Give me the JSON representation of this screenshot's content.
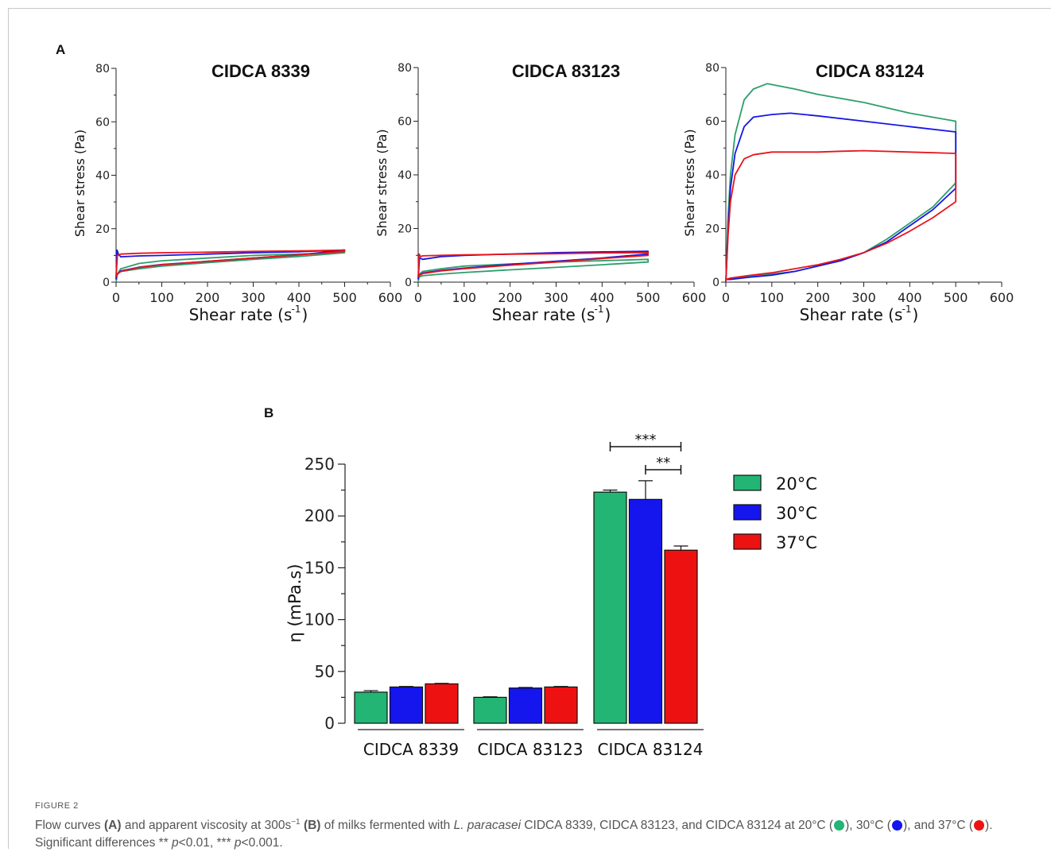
{
  "panel_labels": {
    "a": "A",
    "b": "B"
  },
  "chart_data": [
    {
      "type": "line",
      "title": "CIDCA 8339",
      "xlabel": "Shear rate (s",
      "xlabel_sup": "-1",
      "ylabel": "Shear stress (Pa)",
      "xlim": [
        0,
        600
      ],
      "ylim": [
        0,
        80
      ],
      "xticks": [
        "0",
        "100",
        "200",
        "300",
        "400",
        "500",
        "600"
      ],
      "yticks": [
        "0",
        "20",
        "40",
        "60",
        "80"
      ],
      "series": [
        {
          "color": "#2e9e6b",
          "up": [
            [
              0,
              0
            ],
            [
              3,
              3
            ],
            [
              10,
              5
            ],
            [
              50,
              7
            ],
            [
              100,
              8
            ],
            [
              200,
              9
            ],
            [
              300,
              10
            ],
            [
              400,
              10.5
            ],
            [
              500,
              11
            ]
          ],
          "down": [
            [
              500,
              11
            ],
            [
              400,
              9.6
            ],
            [
              300,
              8.5
            ],
            [
              200,
              7.3
            ],
            [
              100,
              6
            ],
            [
              50,
              5
            ],
            [
              10,
              4
            ],
            [
              3,
              3
            ],
            [
              0,
              2
            ]
          ]
        },
        {
          "color": "#1616e6",
          "up": [
            [
              0,
              1
            ],
            [
              2,
              12
            ],
            [
              5,
              10.5
            ],
            [
              10,
              9.5
            ],
            [
              50,
              9.8
            ],
            [
              100,
              10
            ],
            [
              200,
              10.5
            ],
            [
              300,
              11
            ],
            [
              400,
              11.4
            ],
            [
              500,
              12
            ]
          ],
          "down": [
            [
              500,
              12
            ],
            [
              400,
              10.2
            ],
            [
              300,
              9
            ],
            [
              200,
              7.8
            ],
            [
              100,
              6.6
            ],
            [
              50,
              5.6
            ],
            [
              10,
              4.2
            ],
            [
              3,
              3
            ],
            [
              0,
              2
            ]
          ]
        },
        {
          "color": "#e8151b",
          "up": [
            [
              0,
              2
            ],
            [
              3,
              10
            ],
            [
              10,
              10.5
            ],
            [
              50,
              10.8
            ],
            [
              100,
              11
            ],
            [
              200,
              11.2
            ],
            [
              300,
              11.5
            ],
            [
              400,
              11.7
            ],
            [
              500,
              12
            ]
          ],
          "down": [
            [
              500,
              11.5
            ],
            [
              400,
              10.2
            ],
            [
              300,
              9
            ],
            [
              200,
              7.8
            ],
            [
              100,
              6.5
            ],
            [
              50,
              5.5
            ],
            [
              10,
              4
            ],
            [
              3,
              3
            ],
            [
              0,
              2
            ]
          ]
        }
      ]
    },
    {
      "type": "line",
      "title": "CIDCA 83123",
      "xlabel": "Shear rate (s",
      "xlabel_sup": "-1",
      "ylabel": "Shear stress (Pa)",
      "xlim": [
        0,
        600
      ],
      "ylim": [
        0,
        80
      ],
      "xticks": [
        "0",
        "100",
        "200",
        "300",
        "400",
        "500",
        "600"
      ],
      "yticks": [
        "0",
        "20",
        "40",
        "60",
        "80"
      ],
      "series": [
        {
          "color": "#2e9e6b",
          "up": [
            [
              0,
              0
            ],
            [
              3,
              3
            ],
            [
              10,
              4
            ],
            [
              50,
              5
            ],
            [
              100,
              6
            ],
            [
              200,
              6.8
            ],
            [
              300,
              7.5
            ],
            [
              400,
              8
            ],
            [
              500,
              8.5
            ]
          ],
          "down": [
            [
              500,
              7.5
            ],
            [
              400,
              6.5
            ],
            [
              300,
              5.5
            ],
            [
              200,
              4.6
            ],
            [
              100,
              3.6
            ],
            [
              50,
              3
            ],
            [
              10,
              2.4
            ],
            [
              3,
              2
            ],
            [
              0,
              1
            ]
          ]
        },
        {
          "color": "#1616e6",
          "up": [
            [
              0,
              1
            ],
            [
              3,
              9
            ],
            [
              10,
              8.5
            ],
            [
              50,
              9.5
            ],
            [
              100,
              10
            ],
            [
              200,
              10.5
            ],
            [
              300,
              11
            ],
            [
              400,
              11.3
            ],
            [
              500,
              11.5
            ]
          ],
          "down": [
            [
              500,
              10.5
            ],
            [
              400,
              9
            ],
            [
              300,
              7.8
            ],
            [
              200,
              6.6
            ],
            [
              100,
              5.2
            ],
            [
              50,
              4.4
            ],
            [
              10,
              3.4
            ],
            [
              3,
              2.6
            ],
            [
              0,
              2
            ]
          ]
        },
        {
          "color": "#e8151b",
          "up": [
            [
              0,
              2
            ],
            [
              2,
              10.5
            ],
            [
              5,
              9.5
            ],
            [
              10,
              9.8
            ],
            [
              50,
              10
            ],
            [
              100,
              10.2
            ],
            [
              200,
              10.4
            ],
            [
              300,
              10.6
            ],
            [
              400,
              10.9
            ],
            [
              500,
              11
            ]
          ],
          "down": [
            [
              500,
              10
            ],
            [
              400,
              8.8
            ],
            [
              300,
              7.5
            ],
            [
              200,
              6.3
            ],
            [
              100,
              5
            ],
            [
              50,
              4.2
            ],
            [
              10,
              3.2
            ],
            [
              3,
              2.5
            ],
            [
              0,
              2
            ]
          ]
        }
      ]
    },
    {
      "type": "line",
      "title": "CIDCA 83124",
      "xlabel": "Shear rate (s",
      "xlabel_sup": "-1",
      "ylabel": "Shear stress (Pa)",
      "xlim": [
        0,
        600
      ],
      "ylim": [
        0,
        80
      ],
      "xticks": [
        "0",
        "100",
        "200",
        "300",
        "400",
        "500",
        "600"
      ],
      "yticks": [
        "0",
        "20",
        "40",
        "60",
        "80"
      ],
      "series": [
        {
          "color": "#2e9e6b",
          "up": [
            [
              0,
              0
            ],
            [
              5,
              25
            ],
            [
              10,
              40
            ],
            [
              20,
              55
            ],
            [
              40,
              68
            ],
            [
              60,
              72
            ],
            [
              90,
              74
            ],
            [
              150,
              72
            ],
            [
              200,
              70
            ],
            [
              300,
              67
            ],
            [
              400,
              63
            ],
            [
              500,
              60
            ]
          ],
          "down": [
            [
              500,
              60
            ],
            [
              500,
              37
            ],
            [
              450,
              28
            ],
            [
              400,
              22
            ],
            [
              350,
              16
            ],
            [
              300,
              11
            ],
            [
              250,
              8
            ],
            [
              200,
              6
            ],
            [
              150,
              4
            ],
            [
              100,
              3
            ],
            [
              50,
              2
            ],
            [
              10,
              1.2
            ],
            [
              0,
              1
            ]
          ]
        },
        {
          "color": "#1616e6",
          "up": [
            [
              0,
              0
            ],
            [
              5,
              20
            ],
            [
              10,
              35
            ],
            [
              20,
              48
            ],
            [
              40,
              58
            ],
            [
              60,
              61.5
            ],
            [
              100,
              62.5
            ],
            [
              140,
              63
            ],
            [
              200,
              62
            ],
            [
              300,
              60
            ],
            [
              400,
              58
            ],
            [
              500,
              56
            ]
          ],
          "down": [
            [
              500,
              56
            ],
            [
              500,
              35
            ],
            [
              450,
              27
            ],
            [
              400,
              21
            ],
            [
              350,
              15
            ],
            [
              300,
              11
            ],
            [
              250,
              8
            ],
            [
              200,
              6
            ],
            [
              150,
              4
            ],
            [
              100,
              2.6
            ],
            [
              50,
              1.8
            ],
            [
              10,
              1
            ],
            [
              0,
              1
            ]
          ]
        },
        {
          "color": "#e8151b",
          "up": [
            [
              0,
              0
            ],
            [
              5,
              18
            ],
            [
              10,
              30
            ],
            [
              20,
              40
            ],
            [
              40,
              46
            ],
            [
              60,
              47.5
            ],
            [
              100,
              48.5
            ],
            [
              200,
              48.5
            ],
            [
              250,
              48.8
            ],
            [
              300,
              49
            ],
            [
              400,
              48.5
            ],
            [
              500,
              48
            ]
          ],
          "down": [
            [
              500,
              48
            ],
            [
              500,
              30
            ],
            [
              450,
              24
            ],
            [
              400,
              19
            ],
            [
              350,
              14.5
            ],
            [
              300,
              11
            ],
            [
              250,
              8.5
            ],
            [
              200,
              6.5
            ],
            [
              150,
              5
            ],
            [
              100,
              3.5
            ],
            [
              50,
              2.5
            ],
            [
              10,
              1.5
            ],
            [
              0,
              1
            ]
          ]
        }
      ]
    },
    {
      "type": "bar",
      "ylabel": "η (mPa.s)",
      "ylim": [
        0,
        250
      ],
      "yticks": [
        "0",
        "50",
        "100",
        "150",
        "200",
        "250"
      ],
      "categories": [
        "CIDCA 8339",
        "CIDCA 83123",
        "CIDCA 83124"
      ],
      "series": [
        {
          "name": "20°C",
          "color": "#22b573",
          "values": [
            30,
            25,
            223
          ],
          "errors": [
            1.5,
            0.5,
            2
          ]
        },
        {
          "name": "30°C",
          "color": "#1515ee",
          "values": [
            35,
            34,
            216
          ],
          "errors": [
            0.5,
            0.5,
            18
          ]
        },
        {
          "name": "37°C",
          "color": "#ee1111",
          "values": [
            38,
            35,
            167
          ],
          "errors": [
            0.5,
            0.5,
            4
          ]
        }
      ],
      "legend": "right",
      "significance": [
        {
          "label": "***",
          "from_series": 0,
          "to_series": 2,
          "category": 2
        },
        {
          "label": "**",
          "from_series": 1,
          "to_series": 2,
          "category": 2
        }
      ]
    }
  ],
  "caption": {
    "figure_label": "FIGURE 2",
    "t1": "Flow curves ",
    "a": "(A)",
    "t2": " and apparent viscosity at 300s",
    "sup": "−1",
    "t3": " ",
    "b": "(B)",
    "t4": " of milks fermented with ",
    "species": "L. paracasei",
    "t5": " CIDCA 8339, CIDCA 83123, and CIDCA 83124 at 20°C (",
    "t6": "), 30°C (",
    "t7": "), and 37°C (",
    "t8": "). Significant differences ** ",
    "p1": "p",
    "t9": "<0.01, *** ",
    "p2": "p",
    "t10": "<0.001.",
    "dot_colors": [
      "#22b573",
      "#1515ee",
      "#ee1111"
    ]
  }
}
